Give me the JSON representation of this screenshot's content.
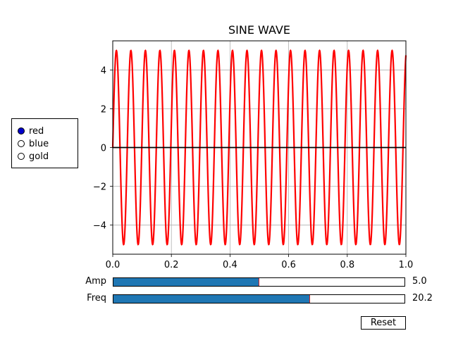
{
  "title": "SINE WAVE",
  "radio": {
    "options": [
      "red",
      "blue",
      "gold"
    ],
    "selected": "red"
  },
  "sliders": {
    "amp": {
      "label": "Amp",
      "value": 5.0,
      "value_text": "5.0",
      "min": 0.0,
      "max": 10.0
    },
    "freq": {
      "label": "Freq",
      "value": 20.2,
      "value_text": "20.2",
      "min": 0.0,
      "max": 30.0
    }
  },
  "reset_label": "Reset",
  "colors": {
    "line": "#ff0000",
    "slider_fill": "#1f77b4",
    "slider_handle": "#d62728",
    "radio_selected": "#0000cc"
  },
  "chart_data": {
    "type": "line",
    "title": "SINE WAVE",
    "function": "y = amp * sin(2*pi*freq*t)",
    "amplitude": 5.0,
    "frequency": 20.2,
    "xlim": [
      0.0,
      1.0
    ],
    "ylim": [
      -5.5,
      5.5
    ],
    "x_ticks": [
      "0.0",
      "0.2",
      "0.4",
      "0.6",
      "0.8",
      "1.0"
    ],
    "y_ticks": [
      "−4",
      "−2",
      "0",
      "2",
      "4"
    ],
    "x_tick_values": [
      0.0,
      0.2,
      0.4,
      0.6,
      0.8,
      1.0
    ],
    "y_tick_values": [
      -4,
      -2,
      0,
      2,
      4
    ],
    "grid": true,
    "zero_line": true,
    "series": [
      {
        "color": "#ff0000"
      }
    ]
  }
}
